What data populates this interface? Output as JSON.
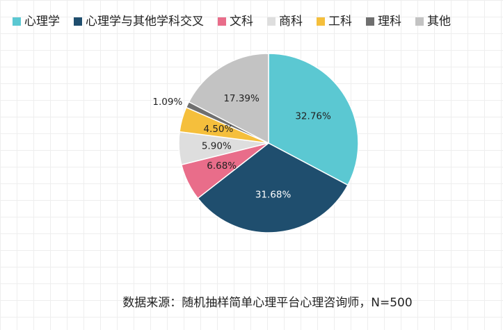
{
  "chart_data": {
    "type": "pie",
    "title": "",
    "legend": "top",
    "slices": [
      {
        "label": "心理学",
        "value": 32.76,
        "display": "32.76%",
        "color": "#5bc8d2",
        "label_color": "#222222"
      },
      {
        "label": "心理学与其他学科交叉",
        "value": 31.68,
        "display": "31.68%",
        "color": "#1f4e6e",
        "label_color": "#ffffff"
      },
      {
        "label": "文科",
        "value": 6.68,
        "display": "6.68%",
        "color": "#e96d8a",
        "label_color": "#222222"
      },
      {
        "label": "商科",
        "value": 5.9,
        "display": "5.90%",
        "color": "#dedede",
        "label_color": "#222222"
      },
      {
        "label": "工科",
        "value": 4.5,
        "display": "4.50%",
        "color": "#f5bf3c",
        "label_color": "#222222"
      },
      {
        "label": "理科",
        "value": 1.09,
        "display": "1.09%",
        "color": "#6f6f6f",
        "label_color": "#222222"
      },
      {
        "label": "其他",
        "value": 17.39,
        "display": "17.39%",
        "color": "#c3c3c3",
        "label_color": "#222222"
      }
    ]
  },
  "source_note": "数据来源：随机抽样简单心理平台心理咨询师，N=500"
}
